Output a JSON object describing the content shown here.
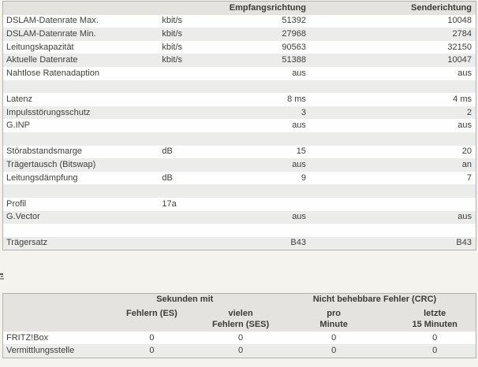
{
  "colors": {
    "page_bg": "#f5f3ee",
    "header_bg": "#e4e3df",
    "row_alt_bg": "#ececeb",
    "border": "#b3b1ac",
    "text": "#3e3e3c"
  },
  "dsl_table": {
    "headers": {
      "empfang": "Empfangsrichtung",
      "sende": "Senderichtung"
    },
    "rows": [
      {
        "label": "DSLAM-Datenrate Max.",
        "unit": "kbit/s",
        "empfang": "51392",
        "sende": "10048"
      },
      {
        "label": "DSLAM-Datenrate Min.",
        "unit": "kbit/s",
        "empfang": "27968",
        "sende": "2784"
      },
      {
        "label": "Leitungskapazität",
        "unit": "kbit/s",
        "empfang": "90563",
        "sende": "32150"
      },
      {
        "label": "Aktuelle Datenrate",
        "unit": "kbit/s",
        "empfang": "51388",
        "sende": "10047"
      },
      {
        "label": "Nahtlose Ratenadaption",
        "unit": "",
        "empfang": "aus",
        "sende": "aus"
      },
      {
        "label": "",
        "unit": "",
        "empfang": "",
        "sende": ""
      },
      {
        "label": "Latenz",
        "unit": "",
        "empfang": "8 ms",
        "sende": "4 ms"
      },
      {
        "label": "Impulsstörungsschutz",
        "unit": "",
        "empfang": "3",
        "sende": "2"
      },
      {
        "label": "G.INP",
        "unit": "",
        "empfang": "aus",
        "sende": "aus"
      },
      {
        "label": "",
        "unit": "",
        "empfang": "",
        "sende": ""
      },
      {
        "label": "Störabstandsmarge",
        "unit": "dB",
        "empfang": "15",
        "sende": "20"
      },
      {
        "label": "Trägertausch (Bitswap)",
        "unit": "",
        "empfang": "aus",
        "sende": "an"
      },
      {
        "label": "Leitungsdämpfung",
        "unit": "dB",
        "empfang": "9",
        "sende": "7"
      },
      {
        "label": "",
        "unit": "",
        "empfang": "",
        "sende": ""
      },
      {
        "label": "Profil",
        "unit": "17a",
        "empfang": "",
        "sende": ""
      },
      {
        "label": "G.Vector",
        "unit": "",
        "empfang": "aus",
        "sende": "aus"
      },
      {
        "label": "",
        "unit": "",
        "empfang": "",
        "sende": ""
      },
      {
        "label": "Trägersatz",
        "unit": "",
        "empfang": "B43",
        "sende": "B43"
      }
    ]
  },
  "error_table": {
    "group_headers": {
      "seconds": "Sekunden mit",
      "crc": "Nicht behebbare Fehler (CRC)"
    },
    "col_headers": {
      "es": {
        "line1": "Fehlern (ES)",
        "line2": ""
      },
      "ses": {
        "line1": "vielen",
        "line2": "Fehlern (SES)"
      },
      "min": {
        "line1": "pro",
        "line2": "Minute"
      },
      "m15": {
        "line1": "letzte",
        "line2": "15 Minuten"
      }
    },
    "rows": [
      {
        "label": "FRITZ!Box",
        "es": "0",
        "ses": "0",
        "min": "0",
        "m15": "0"
      },
      {
        "label": "Vermittlungsstelle",
        "es": "0",
        "ses": "0",
        "min": "0",
        "m15": "0"
      }
    ]
  }
}
